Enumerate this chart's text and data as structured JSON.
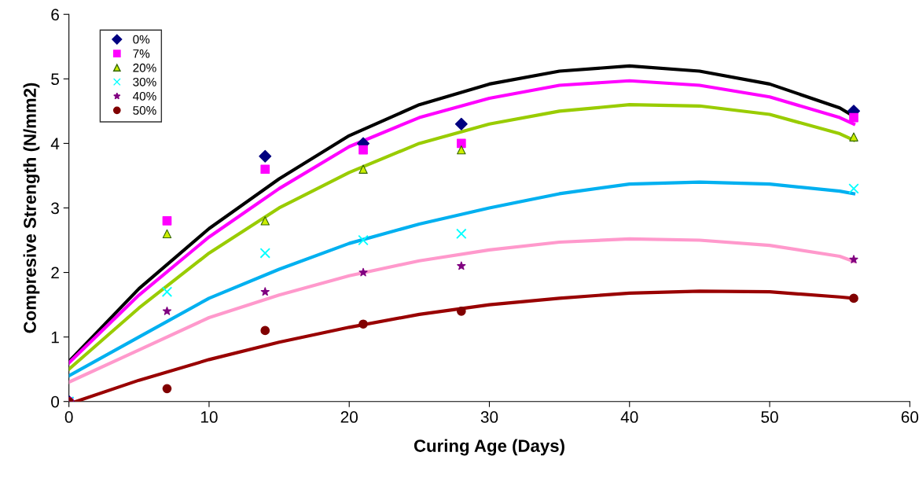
{
  "chart_data": {
    "type": "scatter",
    "xlabel": "Curing Age (Days)",
    "ylabel": "Compresive Strength (N/mm2)",
    "x": [
      0,
      7,
      14,
      21,
      28,
      56
    ],
    "xlim": [
      0,
      60
    ],
    "xticks": [
      0,
      10,
      20,
      30,
      40,
      50,
      60
    ],
    "ylim": [
      0,
      6
    ],
    "yticks": [
      0,
      1,
      2,
      3,
      4,
      5,
      6
    ],
    "grid": false,
    "legend": "top left",
    "series": [
      {
        "name": "0%",
        "color": "#000080",
        "marker": "diamond",
        "values": [
          0,
          null,
          3.8,
          4.0,
          4.3,
          4.5
        ]
      },
      {
        "name": "7%",
        "color": "#ff00ff",
        "marker": "square",
        "values": [
          0,
          2.8,
          3.6,
          3.9,
          4.0,
          4.4
        ]
      },
      {
        "name": "20%",
        "color": "#ccee00",
        "marker": "triangle",
        "values": [
          0,
          2.6,
          2.8,
          3.6,
          3.9,
          4.1
        ]
      },
      {
        "name": "30%",
        "color": "#00ffff",
        "marker": "cross",
        "values": [
          0,
          1.7,
          2.3,
          2.5,
          2.6,
          3.3
        ]
      },
      {
        "name": "40%",
        "color": "#800080",
        "marker": "star",
        "values": [
          0,
          1.4,
          1.7,
          2.0,
          2.1,
          2.2
        ]
      },
      {
        "name": "50%",
        "color": "#800000",
        "marker": "circle",
        "values": [
          0,
          0.2,
          1.1,
          1.2,
          1.4,
          1.6
        ]
      },
      {
        "type": "line",
        "color": "#000000",
        "x": [
          0,
          5,
          10,
          15,
          20,
          25,
          30,
          35,
          40,
          45,
          50,
          55,
          56
        ],
        "values": [
          0.62,
          1.75,
          2.68,
          3.45,
          4.12,
          4.6,
          4.92,
          5.12,
          5.2,
          5.12,
          4.92,
          4.55,
          4.42
        ]
      },
      {
        "type": "line",
        "color": "#ff00ff",
        "x": [
          0,
          5,
          10,
          15,
          20,
          25,
          30,
          35,
          40,
          45,
          50,
          55,
          56
        ],
        "values": [
          0.6,
          1.65,
          2.55,
          3.3,
          3.95,
          4.4,
          4.7,
          4.9,
          4.97,
          4.9,
          4.72,
          4.4,
          4.3
        ]
      },
      {
        "type": "line",
        "color": "#99cc00",
        "x": [
          0,
          5,
          10,
          15,
          20,
          25,
          30,
          35,
          40,
          45,
          50,
          55,
          56
        ],
        "values": [
          0.5,
          1.45,
          2.3,
          3.0,
          3.55,
          4.0,
          4.3,
          4.5,
          4.6,
          4.58,
          4.45,
          4.15,
          4.05
        ]
      },
      {
        "type": "line",
        "color": "#00b0f0",
        "x": [
          0,
          5,
          10,
          15,
          20,
          25,
          30,
          35,
          40,
          45,
          50,
          55,
          56
        ],
        "values": [
          0.4,
          1.0,
          1.6,
          2.05,
          2.45,
          2.75,
          3.0,
          3.22,
          3.37,
          3.4,
          3.37,
          3.26,
          3.22
        ]
      },
      {
        "type": "line",
        "color": "#ff99cc",
        "x": [
          0,
          5,
          10,
          15,
          20,
          25,
          30,
          35,
          40,
          45,
          50,
          55,
          56
        ],
        "values": [
          0.3,
          0.8,
          1.3,
          1.65,
          1.95,
          2.18,
          2.35,
          2.47,
          2.52,
          2.5,
          2.42,
          2.25,
          2.17
        ]
      },
      {
        "type": "line",
        "color": "#990000",
        "x": [
          0.5,
          5,
          10,
          15,
          20,
          25,
          30,
          35,
          40,
          45,
          50,
          55,
          56
        ],
        "values": [
          0,
          0.33,
          0.65,
          0.92,
          1.15,
          1.35,
          1.5,
          1.6,
          1.68,
          1.71,
          1.7,
          1.62,
          1.6
        ]
      }
    ]
  }
}
